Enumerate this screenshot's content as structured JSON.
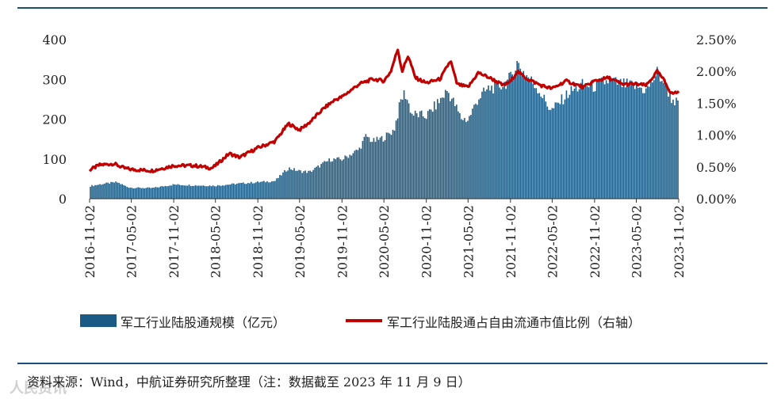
{
  "chart_data": {
    "type": "bar+line",
    "x_ticks": [
      "2016-11-02",
      "2017-05-02",
      "2017-11-02",
      "2018-05-02",
      "2018-11-02",
      "2019-05-02",
      "2019-11-02",
      "2020-05-02",
      "2020-11-02",
      "2021-05-02",
      "2021-11-02",
      "2022-05-02",
      "2022-11-02",
      "2023-05-02",
      "2023-11-02"
    ],
    "y_left": {
      "ticks": [
        "0",
        "100",
        "200",
        "300",
        "400"
      ],
      "ylim": [
        0,
        400
      ]
    },
    "y_right": {
      "ticks": [
        "0.00%",
        "0.50%",
        "1.00%",
        "1.50%",
        "2.00%",
        "2.50%"
      ],
      "ylim": [
        0,
        2.5
      ]
    },
    "series": [
      {
        "name": "军工行业陆股通规模（亿元）",
        "type": "bar",
        "axis": "left",
        "color": "#1a5a84",
        "points": [
          [
            "2016-11-02",
            32
          ],
          [
            "2017-01-02",
            38
          ],
          [
            "2017-03-01",
            42
          ],
          [
            "2017-04-15",
            30
          ],
          [
            "2017-05-02",
            28
          ],
          [
            "2017-08-01",
            27
          ],
          [
            "2017-11-02",
            36
          ],
          [
            "2018-02-01",
            34
          ],
          [
            "2018-05-02",
            33
          ],
          [
            "2018-08-01",
            38
          ],
          [
            "2018-11-02",
            42
          ],
          [
            "2019-01-15",
            45
          ],
          [
            "2019-03-15",
            78
          ],
          [
            "2019-05-02",
            70
          ],
          [
            "2019-06-15",
            68
          ],
          [
            "2019-08-15",
            90
          ],
          [
            "2019-09-15",
            100
          ],
          [
            "2019-11-02",
            100
          ],
          [
            "2020-01-15",
            125
          ],
          [
            "2020-02-15",
            160
          ],
          [
            "2020-03-15",
            145
          ],
          [
            "2020-05-02",
            155
          ],
          [
            "2020-06-15",
            175
          ],
          [
            "2020-07-15",
            250
          ],
          [
            "2020-08-01",
            270
          ],
          [
            "2020-09-01",
            215
          ],
          [
            "2020-11-02",
            210
          ],
          [
            "2021-01-01",
            250
          ],
          [
            "2021-02-01",
            275
          ],
          [
            "2021-03-01",
            245
          ],
          [
            "2021-04-01",
            205
          ],
          [
            "2021-05-02",
            200
          ],
          [
            "2021-06-15",
            255
          ],
          [
            "2021-08-01",
            280
          ],
          [
            "2021-10-01",
            290
          ],
          [
            "2021-11-02",
            305
          ],
          [
            "2021-12-01",
            345
          ],
          [
            "2022-01-01",
            320
          ],
          [
            "2022-03-01",
            280
          ],
          [
            "2022-04-15",
            235
          ],
          [
            "2022-05-02",
            225
          ],
          [
            "2022-07-15",
            270
          ],
          [
            "2022-09-15",
            290
          ],
          [
            "2022-11-02",
            285
          ],
          [
            "2023-01-01",
            300
          ],
          [
            "2023-03-01",
            290
          ],
          [
            "2023-05-02",
            285
          ],
          [
            "2023-06-15",
            275
          ],
          [
            "2023-08-01",
            320
          ],
          [
            "2023-09-01",
            295
          ],
          [
            "2023-10-01",
            255
          ],
          [
            "2023-11-02",
            240
          ]
        ]
      },
      {
        "name": "军工行业陆股通占自由流通市值比例（右轴）",
        "type": "line",
        "axis": "right",
        "color": "#c00000",
        "points": [
          [
            "2016-11-02",
            0.45
          ],
          [
            "2016-12-15",
            0.53
          ],
          [
            "2017-02-15",
            0.55
          ],
          [
            "2017-04-01",
            0.48
          ],
          [
            "2017-05-02",
            0.46
          ],
          [
            "2017-08-01",
            0.44
          ],
          [
            "2017-11-02",
            0.52
          ],
          [
            "2018-02-01",
            0.52
          ],
          [
            "2018-04-15",
            0.48
          ],
          [
            "2018-05-02",
            0.52
          ],
          [
            "2018-07-01",
            0.71
          ],
          [
            "2018-08-15",
            0.65
          ],
          [
            "2018-11-02",
            0.8
          ],
          [
            "2019-01-15",
            0.9
          ],
          [
            "2019-03-15",
            1.18
          ],
          [
            "2019-05-02",
            1.08
          ],
          [
            "2019-06-15",
            1.2
          ],
          [
            "2019-08-15",
            1.42
          ],
          [
            "2019-10-01",
            1.55
          ],
          [
            "2019-11-02",
            1.6
          ],
          [
            "2020-01-15",
            1.8
          ],
          [
            "2020-03-15",
            1.88
          ],
          [
            "2020-05-02",
            1.85
          ],
          [
            "2020-06-01",
            2.0
          ],
          [
            "2020-07-01",
            2.35
          ],
          [
            "2020-07-20",
            2.0
          ],
          [
            "2020-08-15",
            2.25
          ],
          [
            "2020-09-15",
            1.9
          ],
          [
            "2020-11-02",
            1.82
          ],
          [
            "2021-01-01",
            1.88
          ],
          [
            "2021-02-15",
            2.17
          ],
          [
            "2021-03-15",
            1.8
          ],
          [
            "2021-05-02",
            1.75
          ],
          [
            "2021-06-15",
            1.98
          ],
          [
            "2021-08-15",
            1.88
          ],
          [
            "2021-10-01",
            1.78
          ],
          [
            "2021-11-02",
            1.84
          ],
          [
            "2021-12-01",
            2.0
          ],
          [
            "2022-01-15",
            1.88
          ],
          [
            "2022-03-15",
            1.78
          ],
          [
            "2022-05-02",
            1.73
          ],
          [
            "2022-07-01",
            1.85
          ],
          [
            "2022-09-15",
            1.75
          ],
          [
            "2022-11-02",
            1.85
          ],
          [
            "2023-01-01",
            1.9
          ],
          [
            "2023-03-01",
            1.8
          ],
          [
            "2023-05-02",
            1.8
          ],
          [
            "2023-06-15",
            1.78
          ],
          [
            "2023-08-01",
            2.0
          ],
          [
            "2023-09-01",
            1.85
          ],
          [
            "2023-10-01",
            1.65
          ],
          [
            "2023-11-02",
            1.68
          ]
        ]
      }
    ]
  },
  "legend": {
    "bar_label": "军工行业陆股通规模（亿元）",
    "line_label": "军工行业陆股通占自由流通市值比例（右轴）"
  },
  "source_text": "资料来源：Wind，中航证券研究所整理（注：数据截至 2023 年 11 月 9 日）",
  "watermark_text": "人民资讯"
}
